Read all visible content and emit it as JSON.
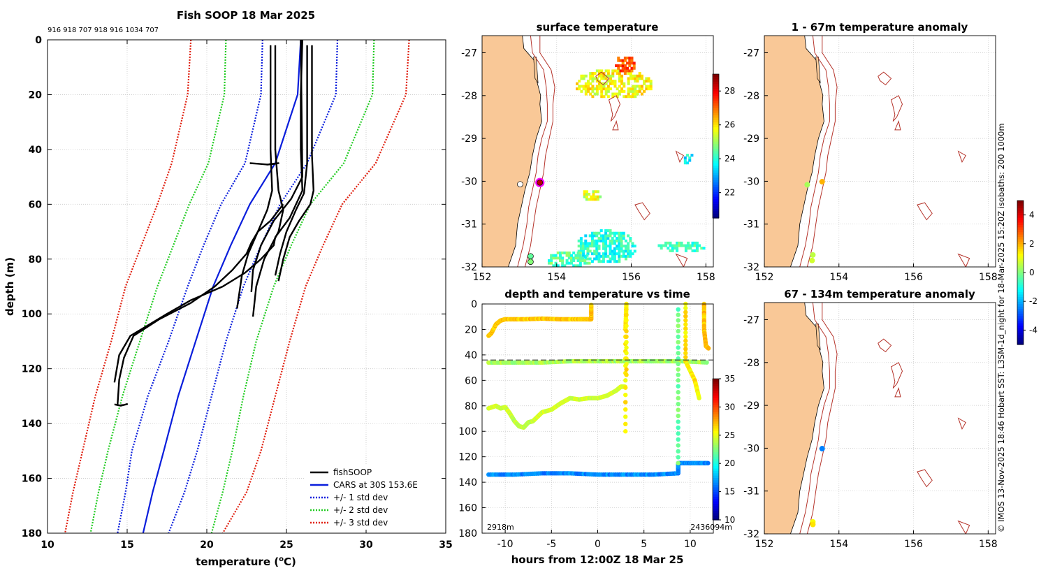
{
  "colors": {
    "land": "#f9c897",
    "isobath": "#b5332a",
    "fish": "#000000",
    "cars": "#0a1edc",
    "std1": "#0a1edc",
    "std2": "#22cc22",
    "std3": "#e02010",
    "grid": "#c8c8c8"
  },
  "credit": "© IMOS 13-Nov-2025 18:46 Hobart SST: L3SM-1d_night for 18-Mar-2025 15:20Z isobaths: 200  1000m",
  "chart_data": [
    {
      "id": "profile",
      "type": "line",
      "title": "Fish SOOP 18 Mar 2025",
      "top_note": "916 918 707 918 916 1034 707",
      "xlabel": "temperature (",
      "xlabel_sup": "o",
      "xlabel_end": "C)",
      "ylabel": "depth (m)",
      "xlim": [
        10,
        35
      ],
      "ylim": [
        0,
        180
      ],
      "y_inverted": true,
      "xticks": [
        10,
        15,
        20,
        25,
        30,
        35
      ],
      "yticks": [
        0,
        20,
        40,
        60,
        80,
        100,
        120,
        140,
        160,
        180
      ],
      "grid": true,
      "legend": [
        {
          "label": "fishSOOP",
          "style": "solid",
          "color_key": "fish"
        },
        {
          "label": "CARS at 30S 153.6E",
          "style": "solid",
          "color_key": "cars"
        },
        {
          "label": "+/- 1 std dev",
          "style": "dotted",
          "color_key": "std1"
        },
        {
          "label": "+/- 2 std dev",
          "style": "dotted",
          "color_key": "std2"
        },
        {
          "label": "+/- 3 std dev",
          "style": "dotted",
          "color_key": "std3"
        }
      ],
      "cars_mean": {
        "depth": [
          0,
          20,
          45,
          60,
          75,
          90,
          110,
          130,
          150,
          165,
          180
        ],
        "temp": [
          25.9,
          25.7,
          24.3,
          22.7,
          21.5,
          20.4,
          19.3,
          18.2,
          17.3,
          16.6,
          16.0
        ]
      },
      "std_bands": [
        {
          "sd": 1,
          "left": {
            "depth": [
              0,
              20,
              45,
              60,
              75,
              90,
              110,
              130,
              150,
              165,
              180
            ],
            "temp": [
              23.5,
              23.4,
              22.4,
              20.9,
              19.8,
              18.8,
              17.6,
              16.3,
              15.3,
              14.9,
              14.4
            ]
          },
          "right": {
            "depth": [
              0,
              20,
              45,
              60,
              75,
              90,
              110,
              130,
              150,
              165,
              180
            ],
            "temp": [
              28.2,
              28.1,
              26.3,
              24.6,
              23.4,
              22.3,
              21.2,
              20.3,
              19.4,
              18.6,
              17.6
            ]
          }
        },
        {
          "sd": 2,
          "left": {
            "depth": [
              0,
              20,
              45,
              60,
              75,
              90,
              110,
              130,
              150,
              165,
              180
            ],
            "temp": [
              21.2,
              21.1,
              20.1,
              18.9,
              17.9,
              16.9,
              15.8,
              14.7,
              13.8,
              13.2,
              12.7
            ]
          },
          "right": {
            "depth": [
              0,
              20,
              45,
              60,
              75,
              90,
              110,
              130,
              150,
              165,
              180
            ],
            "temp": [
              30.5,
              30.4,
              28.6,
              26.5,
              25.3,
              24.2,
              23.1,
              22.3,
              21.6,
              21.0,
              20.3
            ]
          }
        },
        {
          "sd": 3,
          "left": {
            "depth": [
              0,
              20,
              45,
              60,
              75,
              90,
              110,
              130,
              150,
              165,
              180
            ],
            "temp": [
              19.0,
              18.8,
              17.8,
              16.9,
              15.9,
              14.9,
              14.0,
              13.0,
              12.2,
              11.6,
              11.1
            ]
          },
          "right": {
            "depth": [
              0,
              20,
              45,
              60,
              75,
              90,
              110,
              130,
              150,
              165,
              180
            ],
            "temp": [
              32.7,
              32.5,
              30.6,
              28.5,
              27.3,
              26.2,
              25.2,
              24.3,
              23.4,
              22.5,
              21.0
            ]
          }
        }
      ],
      "fish_casts": [
        {
          "depth": [
            2,
            40,
            55,
            62,
            70,
            78,
            86,
            98
          ],
          "temp": [
            24.0,
            24.0,
            24.1,
            23.8,
            23.2,
            22.6,
            22.2,
            21.9
          ]
        },
        {
          "depth": [
            2,
            40,
            55,
            62,
            70,
            80,
            90,
            101
          ],
          "temp": [
            24.3,
            24.3,
            24.5,
            24.8,
            24.5,
            23.6,
            23.1,
            22.9
          ]
        },
        {
          "depth": [
            0,
            50,
            58,
            66,
            75,
            84,
            92
          ],
          "temp": [
            25.9,
            26.0,
            25.3,
            24.2,
            23.4,
            22.9,
            22.8
          ]
        },
        {
          "depth": [
            2,
            42,
            55,
            60,
            66,
            72,
            80,
            88
          ],
          "temp": [
            26.6,
            26.6,
            26.7,
            26.5,
            25.8,
            25.2,
            24.8,
            24.5
          ]
        },
        {
          "depth": [
            2,
            45,
            56,
            62,
            70,
            78,
            86
          ],
          "temp": [
            26.3,
            26.3,
            26.1,
            25.6,
            25.0,
            24.6,
            24.3
          ]
        },
        {
          "depth": [
            0,
            20,
            40,
            55,
            65,
            72,
            75,
            80,
            85,
            90,
            95,
            100,
            108,
            115,
            125
          ],
          "temp": [
            26.0,
            25.9,
            25.9,
            26.0,
            25.2,
            24.3,
            24.2,
            23.4,
            22.4,
            21.0,
            19.0,
            17.5,
            15.2,
            14.5,
            14.2
          ]
        },
        {
          "depth": [
            60,
            66,
            70,
            74,
            78,
            84,
            90,
            96,
            102,
            108,
            116,
            124,
            133
          ],
          "temp": [
            24.8,
            24.0,
            23.2,
            22.8,
            22.5,
            21.6,
            20.5,
            19.0,
            17.0,
            15.4,
            14.8,
            14.5,
            14.4
          ]
        },
        {
          "depth": [
            45,
            45.2,
            45.5,
            45.3,
            45.0,
            45.4
          ],
          "temp": [
            22.7,
            23.2,
            23.8,
            24.2,
            24.5,
            23.9
          ]
        },
        {
          "depth": [
            133,
            133.4,
            133.2,
            132.9,
            133.5,
            133.1
          ],
          "temp": [
            14.2,
            14.5,
            14.8,
            15.0,
            14.6,
            14.3
          ]
        }
      ]
    },
    {
      "id": "map_sst",
      "type": "heatmap",
      "title": "surface temperature",
      "xticks": [
        152,
        154,
        156,
        158
      ],
      "yticks": [
        -27,
        -28,
        -29,
        -30,
        -31,
        -32
      ],
      "xlim": [
        152,
        158.2
      ],
      "ylim": [
        -32,
        -26.6
      ],
      "colorbar_ticks": [
        22,
        24,
        26,
        28
      ],
      "colorbar_range": [
        20.5,
        29
      ],
      "sst_patches": [
        {
          "lon": 155.5,
          "lat": -27.7,
          "w": 2.1,
          "h": 0.7,
          "t": 25.8
        },
        {
          "lon": 155.8,
          "lat": -27.25,
          "w": 0.6,
          "h": 0.4,
          "t": 27.3
        },
        {
          "lon": 157.5,
          "lat": -29.45,
          "w": 0.3,
          "h": 0.3,
          "t": 23.6
        },
        {
          "lon": 155.3,
          "lat": -31.5,
          "w": 1.6,
          "h": 0.8,
          "t": 24.0
        },
        {
          "lon": 154.3,
          "lat": -31.8,
          "w": 1.2,
          "h": 0.4,
          "t": 24.4
        },
        {
          "lon": 157.3,
          "lat": -31.5,
          "w": 1.3,
          "h": 0.3,
          "t": 24.3
        },
        {
          "lon": 154.9,
          "lat": -30.3,
          "w": 0.5,
          "h": 0.3,
          "t": 25.5
        }
      ],
      "stations": [
        {
          "lon": 153.02,
          "lat": -30.07,
          "t": null
        },
        {
          "lon": 153.55,
          "lat": -30.03,
          "t": 28.5,
          "ring": true
        },
        {
          "lon": 153.3,
          "lat": -31.75,
          "t": 24.5
        },
        {
          "lon": 153.3,
          "lat": -31.88,
          "t": 24.8
        }
      ]
    },
    {
      "id": "map_anom_shallow",
      "type": "scatter",
      "title": "1 - 67m temperature anomaly",
      "xticks": [
        152,
        154,
        156,
        158
      ],
      "yticks": [
        -27,
        -28,
        -29,
        -30,
        -31,
        -32
      ],
      "xlim": [
        152,
        158.2
      ],
      "ylim": [
        -32,
        -26.6
      ],
      "points": [
        {
          "lon": 153.15,
          "lat": -30.08,
          "a": 0.4
        },
        {
          "lon": 153.55,
          "lat": -30.01,
          "a": 2.0
        },
        {
          "lon": 153.3,
          "lat": -31.72,
          "a": 0.6
        },
        {
          "lon": 153.28,
          "lat": -31.85,
          "a": 0.8
        }
      ]
    },
    {
      "id": "map_anom_deep",
      "type": "scatter",
      "title": "67 - 134m temperature anomaly",
      "xticks": [
        152,
        154,
        156,
        158
      ],
      "yticks": [
        -27,
        -28,
        -29,
        -30,
        -31,
        -32
      ],
      "xlim": [
        152,
        158.2
      ],
      "ylim": [
        -32,
        -26.6
      ],
      "colorbar_ticks": [
        -4,
        -2,
        0,
        2,
        4
      ],
      "colorbar_range": [
        -5,
        5
      ],
      "points": [
        {
          "lon": 153.55,
          "lat": -30.01,
          "a": -2.5
        },
        {
          "lon": 153.3,
          "lat": -31.72,
          "a": 1.2
        },
        {
          "lon": 153.3,
          "lat": -31.78,
          "a": 1.5
        }
      ]
    },
    {
      "id": "timeseries",
      "type": "scatter",
      "title": "depth and temperature vs time",
      "xlabel": "hours from 12:00Z 18 Mar 25",
      "xlim": [
        -12.5,
        12.5
      ],
      "ylim": [
        0,
        180
      ],
      "y_inverted": true,
      "xticks": [
        -10,
        -5,
        0,
        5,
        10
      ],
      "yticks": [
        0,
        20,
        40,
        60,
        80,
        100,
        120,
        140,
        160,
        180
      ],
      "colorbar_ticks": [
        10,
        15,
        20,
        25,
        30,
        35
      ],
      "colorbar_range": [
        10,
        35
      ],
      "reference_depth": 44,
      "corner_left": "2918m",
      "corner_right": "2436094m",
      "tracks": [
        {
          "t": [
            -11.8,
            -11.5,
            -11,
            -10.5,
            -10,
            -8,
            -6,
            -4,
            -2,
            -1,
            -0.7
          ],
          "d": [
            25,
            23,
            16,
            13,
            12,
            12,
            11.5,
            12,
            12,
            12,
            12
          ],
          "temp": 27
        },
        {
          "t": [
            -0.7,
            -0.7
          ],
          "d": [
            12,
            0
          ],
          "temp": 27
        },
        {
          "t": [
            -11.8,
            -9,
            -6,
            -3,
            0,
            3,
            6,
            9,
            12
          ],
          "d": [
            46,
            46,
            46,
            45,
            45,
            45,
            45,
            45,
            46
          ],
          "temp": 23.5
        },
        {
          "t": [
            -11.8,
            -11,
            -10.5,
            -10,
            -9.5,
            -9,
            -8.5,
            -8,
            -7.5,
            -7,
            -6,
            -5,
            -4,
            -3.5,
            -3,
            -2,
            -1,
            0,
            1,
            2,
            2.5,
            3
          ],
          "d": [
            82,
            80,
            82,
            81,
            86,
            92,
            96,
            97,
            93,
            92,
            85,
            83,
            78,
            76,
            74,
            75,
            74,
            74,
            72,
            68,
            65,
            65
          ],
          "temp": 24.5
        },
        {
          "t": [
            3,
            3,
            3.1,
            3.1
          ],
          "d": [
            100,
            20,
            0,
            60
          ],
          "temp": 26
        },
        {
          "t": [
            -11.8,
            -9,
            -6,
            -3,
            0,
            3,
            6,
            8.7,
            8.7,
            9,
            10,
            11,
            12
          ],
          "d": [
            134,
            134,
            133,
            133,
            134,
            134,
            134,
            133,
            125,
            125,
            125,
            125,
            125
          ],
          "temp": 17
        },
        {
          "t": [
            8.7,
            8.7,
            8.7
          ],
          "d": [
            125,
            60,
            0
          ],
          "temp": 22
        },
        {
          "t": [
            9.5,
            9.5,
            10.5,
            11.0
          ],
          "d": [
            0,
            45,
            60,
            75
          ],
          "temp": 26
        },
        {
          "t": [
            11.5,
            11.5,
            11.7,
            12
          ],
          "d": [
            0,
            20,
            33,
            35
          ],
          "temp": 27
        }
      ]
    }
  ]
}
